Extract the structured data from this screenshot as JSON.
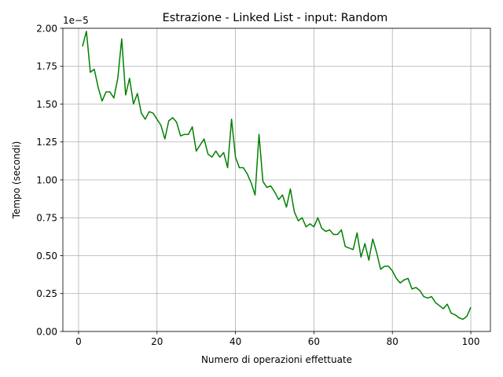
{
  "chart_data": {
    "type": "line",
    "title": "Estrazione - Linked List - input: Random",
    "xlabel": "Numero di operazioni effettuate",
    "ylabel": "Tempo (secondi)",
    "y_offset_label": "1e−5",
    "xlim": [
      -4,
      105
    ],
    "ylim": [
      0.0,
      2.0
    ],
    "grid": true,
    "x_ticks": [
      0,
      20,
      40,
      60,
      80,
      100
    ],
    "x_tick_labels": [
      "0",
      "20",
      "40",
      "60",
      "80",
      "100"
    ],
    "y_ticks": [
      0.0,
      0.25,
      0.5,
      0.75,
      1.0,
      1.25,
      1.5,
      1.75,
      2.0
    ],
    "y_tick_labels": [
      "0.00",
      "0.25",
      "0.50",
      "0.75",
      "1.00",
      "1.25",
      "1.50",
      "1.75",
      "2.00"
    ],
    "series": [
      {
        "color": "#008000",
        "x": [
          1,
          2,
          3,
          4,
          5,
          6,
          7,
          8,
          9,
          10,
          11,
          12,
          13,
          14,
          15,
          16,
          17,
          18,
          19,
          20,
          21,
          22,
          23,
          24,
          25,
          26,
          27,
          28,
          29,
          30,
          31,
          32,
          33,
          34,
          35,
          36,
          37,
          38,
          39,
          40,
          41,
          42,
          43,
          44,
          45,
          46,
          47,
          48,
          49,
          50,
          51,
          52,
          53,
          54,
          55,
          56,
          57,
          58,
          59,
          60,
          61,
          62,
          63,
          64,
          65,
          66,
          67,
          68,
          69,
          70,
          71,
          72,
          73,
          74,
          75,
          76,
          77,
          78,
          79,
          80,
          81,
          82,
          83,
          84,
          85,
          86,
          87,
          88,
          89,
          90,
          91,
          92,
          93,
          94,
          95,
          96,
          97,
          98,
          99,
          100
        ],
        "y": [
          1.88,
          1.98,
          1.71,
          1.73,
          1.61,
          1.52,
          1.58,
          1.58,
          1.54,
          1.67,
          1.93,
          1.56,
          1.67,
          1.5,
          1.57,
          1.44,
          1.4,
          1.45,
          1.44,
          1.4,
          1.36,
          1.27,
          1.39,
          1.41,
          1.38,
          1.29,
          1.3,
          1.3,
          1.35,
          1.19,
          1.23,
          1.27,
          1.17,
          1.15,
          1.19,
          1.15,
          1.18,
          1.08,
          1.4,
          1.15,
          1.08,
          1.08,
          1.04,
          0.98,
          0.9,
          1.3,
          0.99,
          0.95,
          0.96,
          0.92,
          0.87,
          0.9,
          0.82,
          0.94,
          0.79,
          0.73,
          0.75,
          0.69,
          0.71,
          0.69,
          0.75,
          0.68,
          0.66,
          0.67,
          0.64,
          0.64,
          0.67,
          0.56,
          0.55,
          0.54,
          0.65,
          0.49,
          0.58,
          0.47,
          0.61,
          0.52,
          0.41,
          0.43,
          0.43,
          0.4,
          0.35,
          0.32,
          0.34,
          0.35,
          0.28,
          0.29,
          0.27,
          0.23,
          0.22,
          0.23,
          0.19,
          0.17,
          0.15,
          0.18,
          0.12,
          0.11,
          0.09,
          0.08,
          0.1,
          0.16
        ]
      }
    ]
  }
}
